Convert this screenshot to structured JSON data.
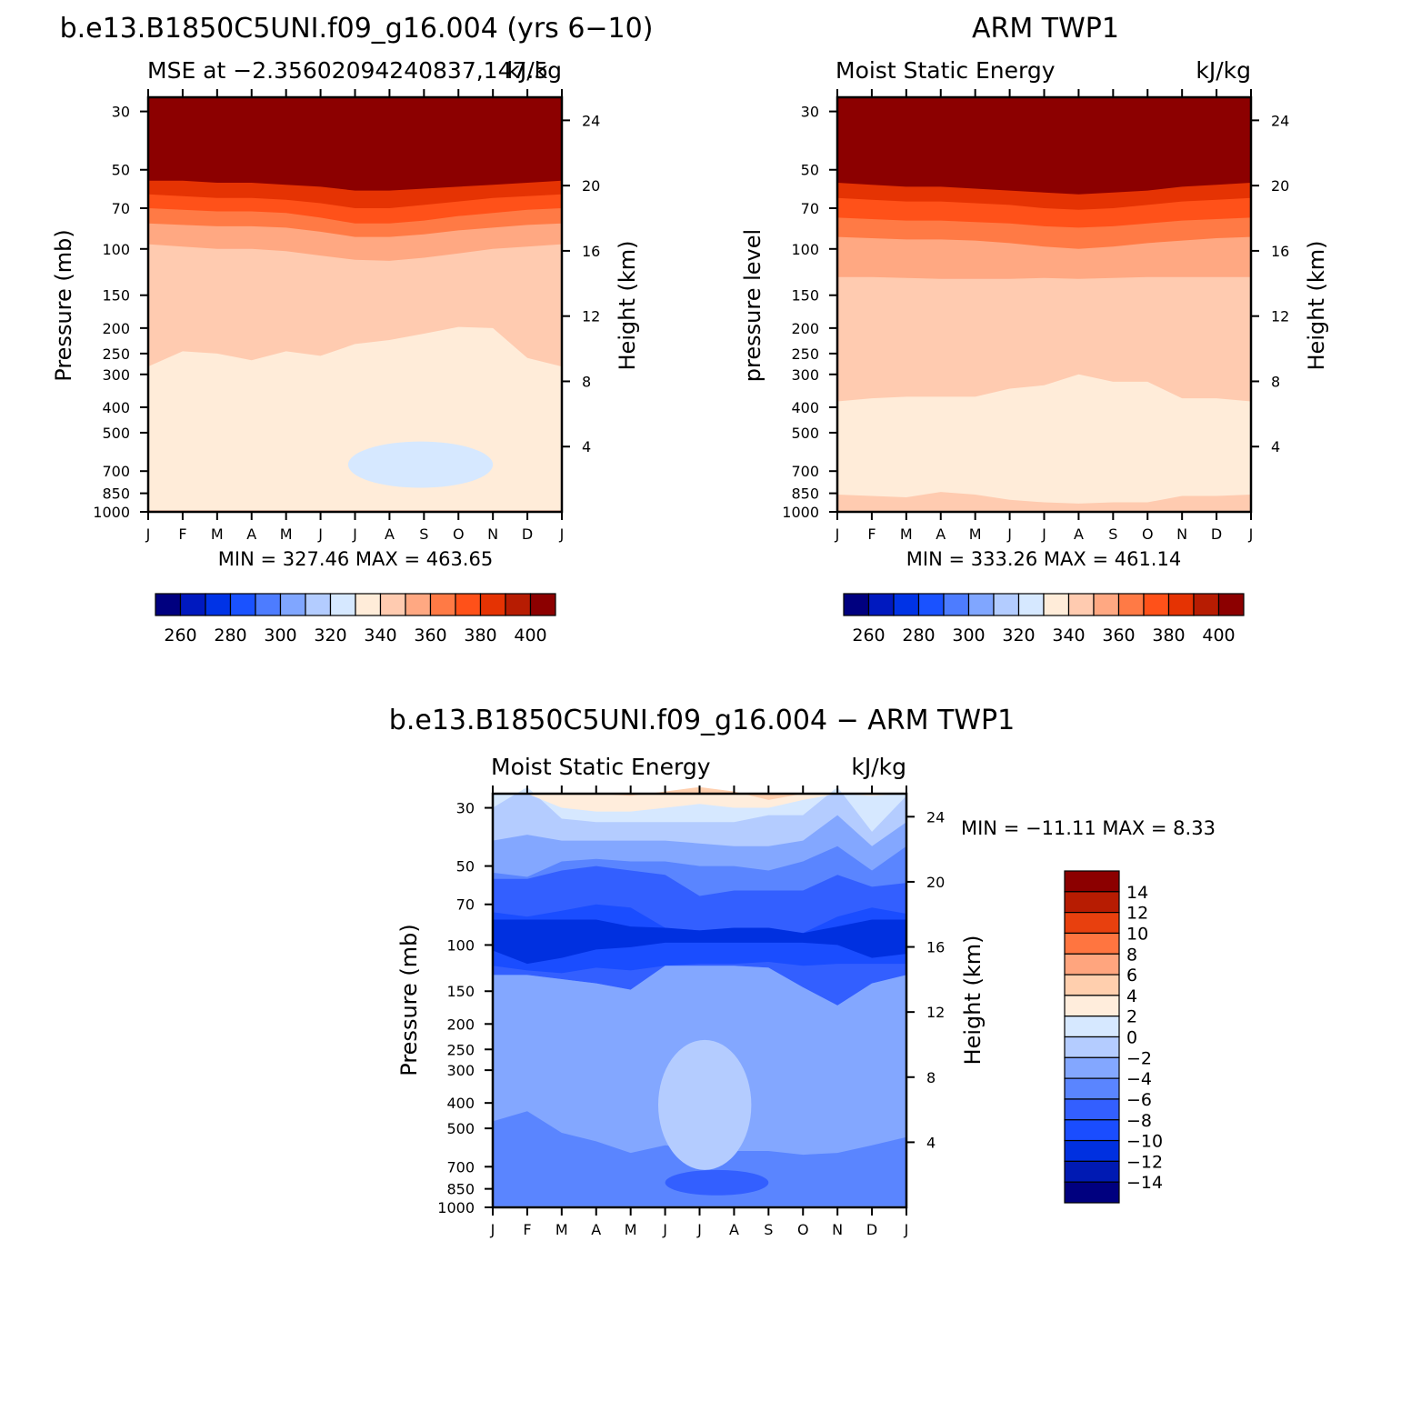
{
  "chart_data": [
    {
      "type": "heatmap",
      "title": "b.e13.B1850C5UNI.f09_g16.004 (yrs 6−10)",
      "subtitle_left": "MSE at −2.35602094240837,147.5",
      "subtitle_right": "kJ/kg",
      "ylabel": "Pressure (mb)",
      "ylabel_right": "Height (km)",
      "x_ticks": [
        "J",
        "F",
        "M",
        "A",
        "M",
        "J",
        "J",
        "A",
        "S",
        "O",
        "N",
        "D",
        "J"
      ],
      "y_ticks": [
        "30",
        "50",
        "70",
        "100",
        "150",
        "200",
        "250",
        "300",
        "400",
        "500",
        "700",
        "850",
        "1000"
      ],
      "y_ticks_right": [
        "24",
        "20",
        "16",
        "12",
        "8",
        "4"
      ],
      "min_max_text": "MIN = 327.46 MAX = 463.65",
      "colorbar": {
        "levels": [
          250,
          260,
          270,
          280,
          290,
          300,
          310,
          320,
          330,
          340,
          350,
          360,
          370,
          380,
          390,
          400
        ],
        "labels": [
          "260",
          "280",
          "300",
          "320",
          "340",
          "360",
          "380",
          "400"
        ]
      },
      "contour_boundaries_hPa": {
        "above_400": [
          55,
          55,
          56,
          56,
          57,
          58,
          60,
          60,
          59,
          58,
          57,
          56,
          55
        ],
        "level_370_380": [
          62,
          63,
          64,
          64,
          65,
          67,
          70,
          70,
          68,
          66,
          64,
          63,
          62
        ],
        "level_360_370": [
          70,
          71,
          72,
          72,
          73,
          76,
          80,
          80,
          78,
          75,
          73,
          71,
          70
        ],
        "level_350_360": [
          80,
          81,
          82,
          82,
          83,
          86,
          90,
          90,
          88,
          85,
          83,
          81,
          80
        ],
        "level_340_350": [
          96,
          98,
          100,
          100,
          102,
          106,
          110,
          111,
          108,
          104,
          100,
          98,
          96
        ],
        "level_330_340": [
          280,
          245,
          250,
          265,
          245,
          255,
          230,
          222,
          210,
          198,
          200,
          260,
          280
        ],
        "level_320_330_region": {
          "start_month": 5.8,
          "end_month": 10.0,
          "top_hPa": 540,
          "bottom_hPa": 810
        }
      }
    },
    {
      "type": "heatmap",
      "title": "ARM TWP1",
      "subtitle_left": "Moist Static Energy",
      "subtitle_right": "kJ/kg",
      "ylabel": "pressure level",
      "ylabel_right": "Height (km)",
      "x_ticks": [
        "J",
        "F",
        "M",
        "A",
        "M",
        "J",
        "J",
        "A",
        "S",
        "O",
        "N",
        "D",
        "J"
      ],
      "y_ticks": [
        "30",
        "50",
        "70",
        "100",
        "150",
        "200",
        "250",
        "300",
        "400",
        "500",
        "700",
        "850",
        "1000"
      ],
      "y_ticks_right": [
        "24",
        "20",
        "16",
        "12",
        "8",
        "4"
      ],
      "min_max_text": "MIN = 333.26 MAX = 461.14",
      "colorbar": {
        "levels": [
          250,
          260,
          270,
          280,
          290,
          300,
          310,
          320,
          330,
          340,
          350,
          360,
          370,
          380,
          390,
          400
        ],
        "labels": [
          "260",
          "280",
          "300",
          "320",
          "340",
          "360",
          "380",
          "400"
        ]
      },
      "contour_boundaries_hPa": {
        "above_400": [
          56,
          57,
          58,
          58,
          59,
          60,
          61,
          62,
          61,
          60,
          58,
          57,
          56
        ],
        "level_370_380": [
          64,
          65,
          66,
          66,
          67,
          68,
          70,
          71,
          70,
          68,
          66,
          65,
          64
        ],
        "level_360_370": [
          76,
          77,
          78,
          78,
          79,
          80,
          82,
          83,
          82,
          80,
          78,
          77,
          76
        ],
        "level_350_360": [
          90,
          91,
          92,
          92,
          93,
          95,
          98,
          100,
          98,
          95,
          93,
          91,
          90
        ],
        "level_340_350": [
          128,
          128,
          129,
          130,
          130,
          130,
          129,
          130,
          129,
          128,
          128,
          128,
          128
        ],
        "level_330_340": [
          380,
          370,
          365,
          365,
          365,
          340,
          330,
          300,
          320,
          320,
          370,
          370,
          380
        ],
        "level_320_330": [
          860,
          870,
          880,
          840,
          860,
          900,
          920,
          930,
          920,
          920,
          870,
          870,
          860
        ]
      }
    },
    {
      "type": "heatmap",
      "title": "b.e13.B1850C5UNI.f09_g16.004 − ARM TWP1",
      "subtitle_left": "Moist Static Energy",
      "subtitle_right": "kJ/kg",
      "ylabel": "Pressure (mb)",
      "ylabel_right": "Height (km)",
      "x_ticks": [
        "J",
        "F",
        "M",
        "A",
        "M",
        "J",
        "J",
        "A",
        "S",
        "O",
        "N",
        "D",
        "J"
      ],
      "y_ticks": [
        "30",
        "50",
        "70",
        "100",
        "150",
        "200",
        "250",
        "300",
        "400",
        "500",
        "700",
        "850",
        "1000"
      ],
      "y_ticks_right": [
        "24",
        "20",
        "16",
        "12",
        "8",
        "4"
      ],
      "min_max_text": "MIN = −11.11 MAX =    8.33",
      "colorbar": {
        "levels": [
          -16,
          -14,
          -12,
          -10,
          -8,
          -6,
          -4,
          -2,
          0,
          2,
          4,
          6,
          8,
          10,
          12,
          14
        ],
        "labels": [
          "14",
          "12",
          "10",
          "8",
          "6",
          "4",
          "2",
          "0",
          "−2",
          "−4",
          "−6",
          "−8",
          "−10",
          "−12",
          "−14"
        ]
      },
      "contour_boundaries_hPa": {
        "level_4_6": [
          null,
          null,
          null,
          null,
          27,
          26,
          25,
          26,
          28,
          null,
          null,
          null,
          null
        ],
        "level_2_4": [
          null,
          null,
          30,
          31,
          31,
          30,
          29,
          30,
          30,
          28,
          null,
          27,
          null
        ],
        "level_0_2": [
          30,
          25,
          33,
          34,
          34,
          34,
          34,
          34,
          32,
          32,
          25,
          37,
          27
        ],
        "level_neg2_0": [
          40,
          38,
          40,
          40,
          40,
          40,
          41,
          42,
          42,
          40,
          32,
          42,
          34
        ],
        "level_neg4_neg2": [
          53,
          55,
          48,
          47,
          48,
          48,
          50,
          50,
          52,
          48,
          42,
          52,
          42
        ],
        "level_neg6_neg4": [
          56,
          56,
          52,
          50,
          52,
          54,
          65,
          62,
          62,
          62,
          54,
          60,
          58
        ],
        "level_neg8_neg6": [
          75,
          78,
          74,
          70,
          72,
          86,
          88,
          86,
          86,
          90,
          78,
          72,
          76
        ],
        "level_neg10_neg8_upper": [
          80,
          80,
          80,
          80,
          85,
          86,
          88,
          86,
          86,
          90,
          85,
          80,
          80
        ],
        "level_neg10_neg8_lower": [
          105,
          118,
          112,
          104,
          102,
          98,
          98,
          98,
          98,
          98,
          100,
          112,
          108
        ],
        "level_neg8_neg6_lower": [
          120,
          125,
          128,
          122,
          125,
          120,
          118,
          118,
          116,
          120,
          118,
          118,
          118
        ],
        "level_neg6_neg4_lower": [
          130,
          130,
          135,
          140,
          148,
          120,
          120,
          120,
          122,
          145,
          170,
          140,
          130
        ],
        "level_neg4_neg2_lower": [
          470,
          430,
          520,
          560,
          620,
          580,
          600,
          610,
          610,
          630,
          620,
          580,
          540
        ],
        "level_neg2_0_region": {
          "start_month": 4.8,
          "end_month": 7.5,
          "top_hPa": 230,
          "bottom_hPa": 720
        },
        "level_neg6_neg4_deep_region": {
          "start_month": 5.0,
          "end_month": 8.0,
          "top_hPa": 720,
          "bottom_hPa": 900
        }
      }
    }
  ]
}
